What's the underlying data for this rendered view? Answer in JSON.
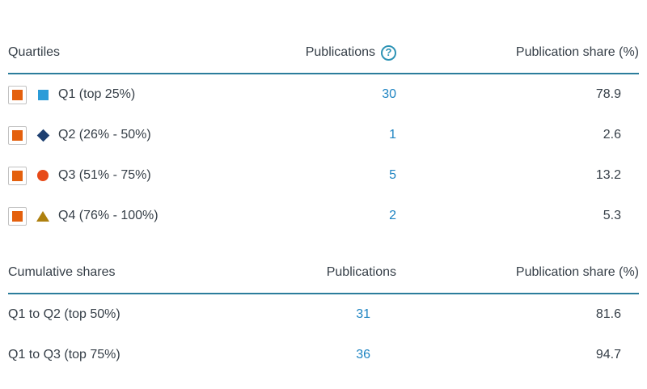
{
  "colors": {
    "text": "#353e47",
    "link_blue": "#1e84c2",
    "header_rule": "#2c7d9c",
    "help_icon": "#2d93b5",
    "checkbox_fill": "#e4600d",
    "checkbox_border": "#c2c2c2"
  },
  "quartiles_section": {
    "col_label": "Quartiles",
    "col_publications": "Publications",
    "help_icon_glyph": "?",
    "col_share": "Publication share (%)",
    "rows": [
      {
        "label": "Q1 (top 25%)",
        "marker": "square-icon",
        "marker_color": "#2b9cd8",
        "publications": "30",
        "share": "78.9",
        "checked": true
      },
      {
        "label": "Q2 (26% - 50%)",
        "marker": "diamond-icon",
        "marker_color": "#1e4071",
        "publications": "1",
        "share": "2.6",
        "checked": true
      },
      {
        "label": "Q3 (51% - 75%)",
        "marker": "circle-icon",
        "marker_color": "#e74a18",
        "publications": "5",
        "share": "13.2",
        "checked": true
      },
      {
        "label": "Q4 (76% - 100%)",
        "marker": "triangle-icon",
        "marker_color": "#ae800f",
        "publications": "2",
        "share": "5.3",
        "checked": true
      }
    ]
  },
  "cumulative_section": {
    "col_label": "Cumulative shares",
    "col_publications": "Publications",
    "col_share": "Publication share (%)",
    "rows": [
      {
        "label": "Q1 to Q2 (top 50%)",
        "publications": "31",
        "share": "81.6"
      },
      {
        "label": "Q1 to Q3 (top 75%)",
        "publications": "36",
        "share": "94.7"
      }
    ]
  }
}
